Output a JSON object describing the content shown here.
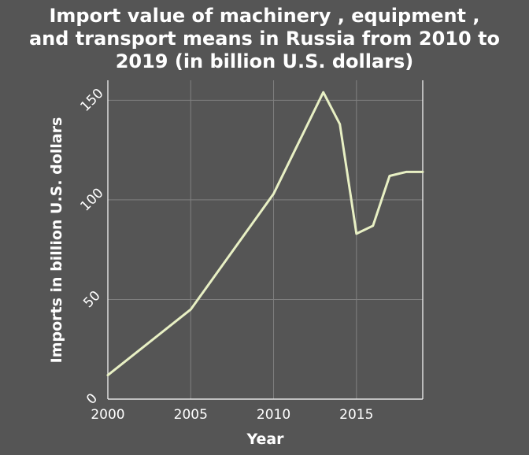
{
  "chart_data": {
    "type": "line",
    "title_lines": [
      "Import value of machinery , equipment ,",
      "and transport means in Russia from 2010 to",
      "2019 (in billion U.S. dollars)"
    ],
    "xlabel": "Year",
    "ylabel": "Imports in billion U.S. dollars",
    "xlim": [
      2000,
      2019
    ],
    "ylim": [
      0,
      160
    ],
    "xticks": [
      2000,
      2005,
      2010,
      2015
    ],
    "yticks": [
      0,
      50,
      100,
      150
    ],
    "grid": true,
    "x": [
      2000,
      2005,
      2010,
      2013,
      2014,
      2015,
      2016,
      2017,
      2018,
      2019
    ],
    "series": [
      {
        "values": [
          12,
          45,
          103,
          154,
          138,
          83,
          87,
          112,
          114,
          114
        ]
      }
    ],
    "colors": {
      "background": "#555555",
      "line": "#e8f0c4",
      "grid": "#808080",
      "text": "#ffffff"
    }
  }
}
